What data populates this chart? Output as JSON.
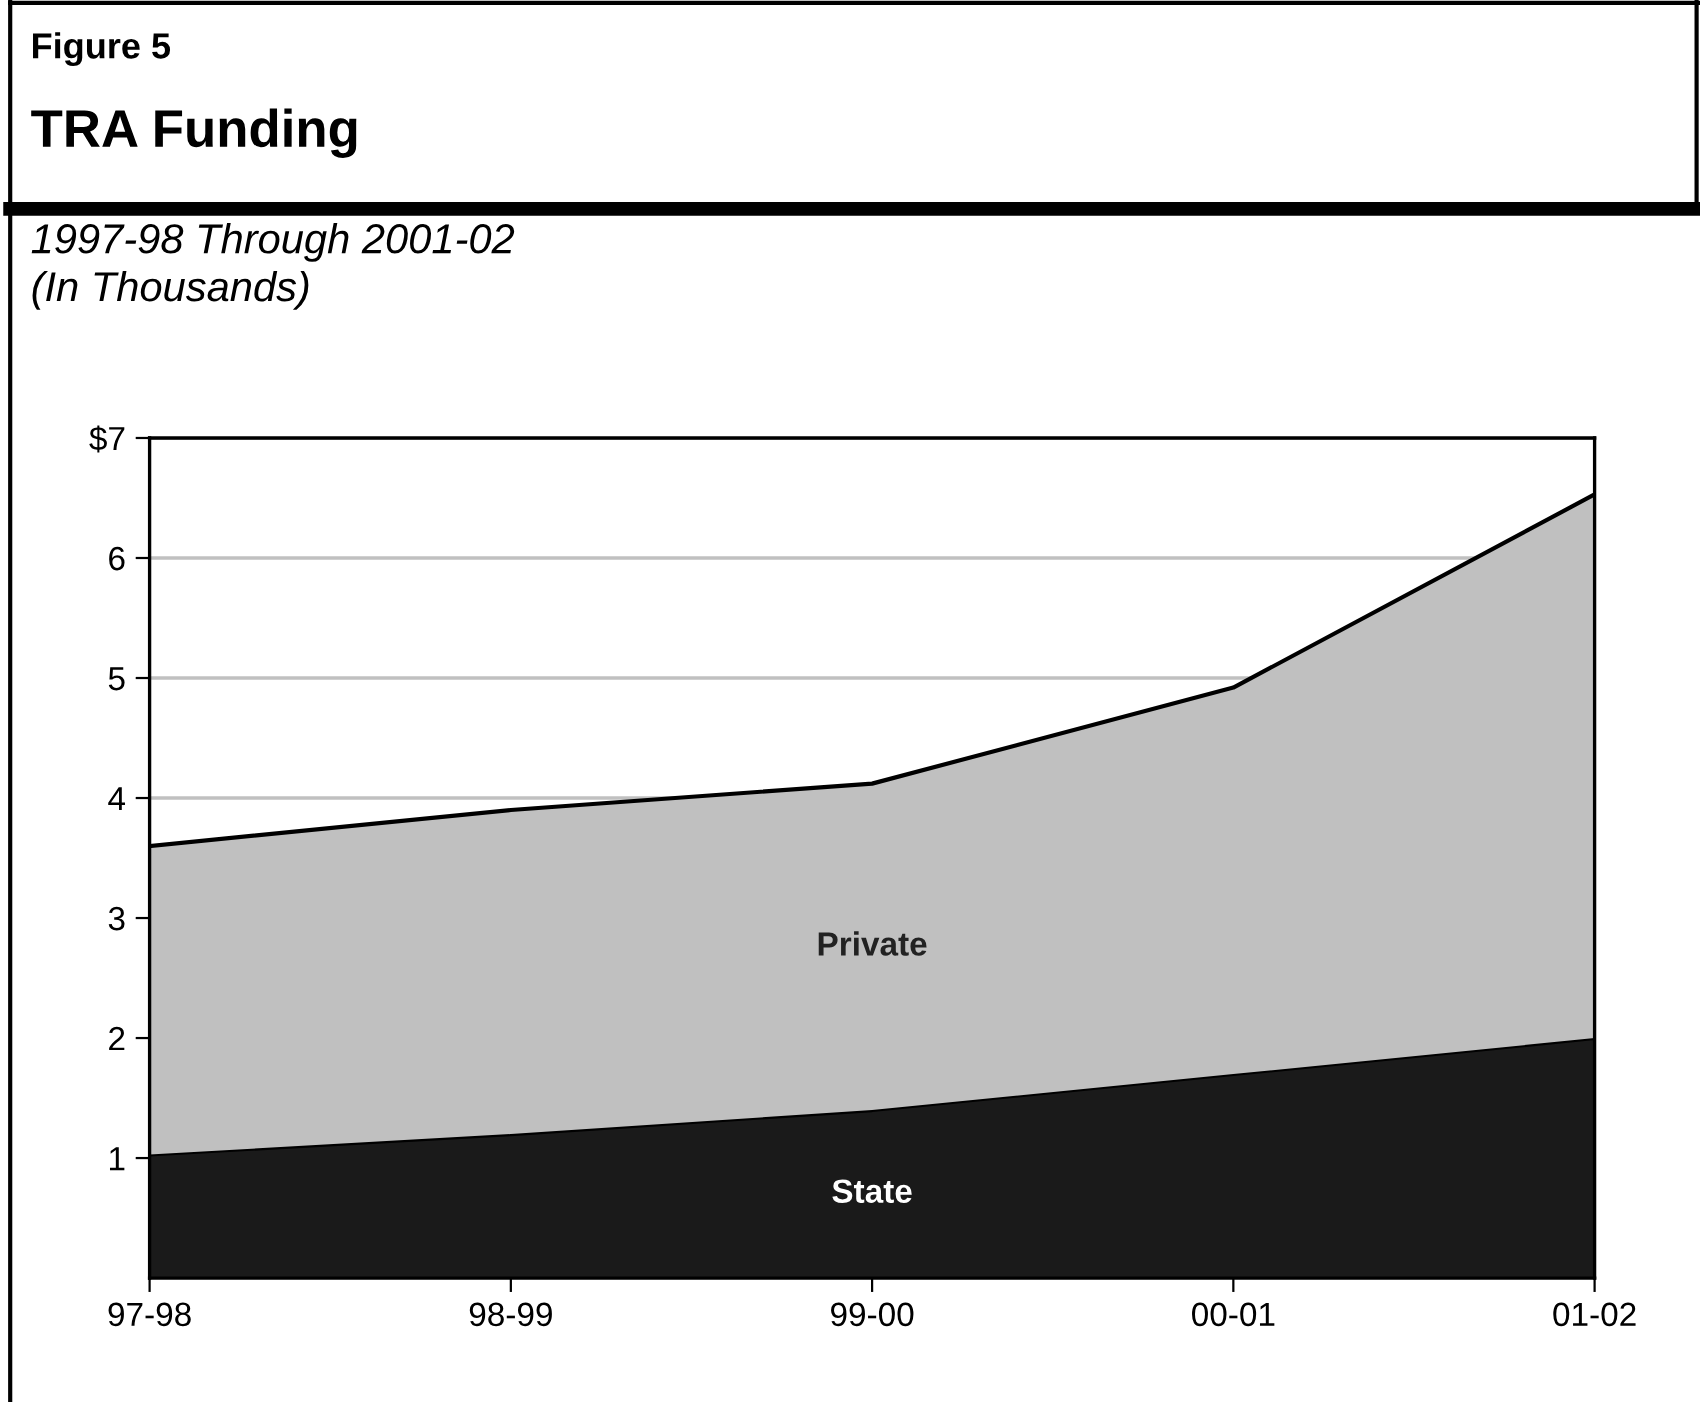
{
  "chart_data": {
    "type": "area",
    "title": "TRA Funding",
    "subtitle": "1997-98 Through 2001-02\n(In Thousands)",
    "annotations": [
      "Figure 5"
    ],
    "categories": [
      "97-98",
      "98-99",
      "99-00",
      "00-01",
      "01-02"
    ],
    "stacked": true,
    "series": [
      {
        "name": "State",
        "color": "#1a1a1a",
        "values": [
          1.03,
          1.2,
          1.4,
          1.7,
          2.0
        ]
      },
      {
        "name": "Private",
        "color": "#c0c0c0",
        "values": [
          2.57,
          2.7,
          2.72,
          3.22,
          4.53
        ]
      }
    ],
    "ylim": [
      0,
      7
    ],
    "yticks": [
      1,
      2,
      3,
      4,
      5,
      6,
      {
        "value": 7,
        "label": "$7"
      }
    ],
    "grid": "y",
    "legend": false
  }
}
